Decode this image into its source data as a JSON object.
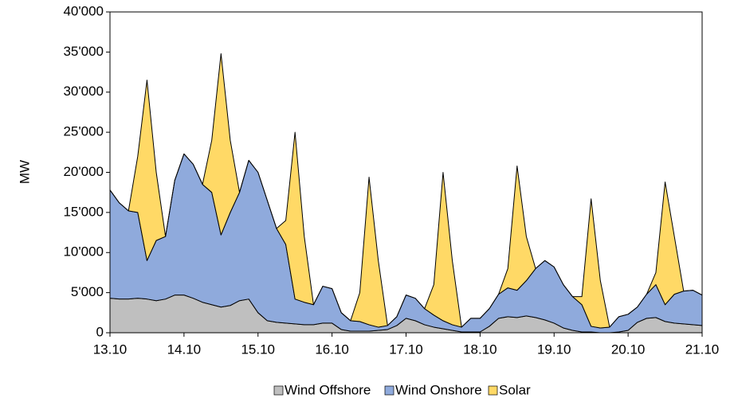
{
  "chart_data": {
    "type": "stacked-area",
    "y_label": "MW",
    "x": [
      0,
      0.125,
      0.25,
      0.375,
      0.5,
      0.625,
      0.75,
      0.875,
      1,
      1.125,
      1.25,
      1.375,
      1.5,
      1.625,
      1.75,
      1.875,
      2,
      2.125,
      2.25,
      2.375,
      2.5,
      2.625,
      2.75,
      2.875,
      3,
      3.125,
      3.25,
      3.375,
      3.5,
      3.625,
      3.75,
      3.875,
      4,
      4.125,
      4.25,
      4.375,
      4.5,
      4.625,
      4.75,
      4.875,
      5,
      5.125,
      5.25,
      5.375,
      5.5,
      5.625,
      5.75,
      5.875,
      6,
      6.125,
      6.25,
      6.375,
      6.5,
      6.625,
      6.75,
      6.875,
      7,
      7.125,
      7.25,
      7.375,
      7.5,
      7.625,
      7.75,
      7.875,
      8
    ],
    "xlim": [
      0,
      8
    ],
    "xticks": [
      {
        "value": 0,
        "label": "13.10"
      },
      {
        "value": 1,
        "label": "14.10"
      },
      {
        "value": 2,
        "label": "15.10"
      },
      {
        "value": 3,
        "label": "16.10"
      },
      {
        "value": 4,
        "label": "17.10"
      },
      {
        "value": 5,
        "label": "18.10"
      },
      {
        "value": 6,
        "label": "19.10"
      },
      {
        "value": 7,
        "label": "20.10"
      },
      {
        "value": 8,
        "label": "21.10"
      }
    ],
    "ylim": [
      0,
      40000
    ],
    "yticks": [
      0,
      {
        "value": 5000,
        "label": "5'000"
      },
      {
        "value": 10000,
        "label": "10'000"
      },
      {
        "value": 15000,
        "label": "15'000"
      },
      {
        "value": 20000,
        "label": "20'000"
      },
      {
        "value": 25000,
        "label": "25'000"
      },
      {
        "value": 30000,
        "label": "30'000"
      },
      {
        "value": 35000,
        "label": "35'000"
      },
      {
        "value": 40000,
        "label": "40'000"
      }
    ],
    "series": [
      {
        "name": "Wind Offshore",
        "color": "#bfbfbf",
        "values": [
          4300,
          4200,
          4200,
          4300,
          4200,
          4000,
          4200,
          4700,
          4700,
          4300,
          3800,
          3500,
          3200,
          3400,
          4000,
          4200,
          2500,
          1500,
          1300,
          1200,
          1100,
          1000,
          1000,
          1200,
          1200,
          400,
          200,
          200,
          200,
          300,
          400,
          900,
          1800,
          1500,
          1000,
          700,
          500,
          300,
          100,
          100,
          100,
          800,
          1800,
          2000,
          1900,
          2100,
          1900,
          1600,
          1200,
          600,
          300,
          100,
          100,
          0,
          0,
          100,
          300,
          1300,
          1800,
          1900,
          1400,
          1200,
          1100,
          1000,
          900
        ]
      },
      {
        "name": "Wind Onshore",
        "color": "#8faadc",
        "values": [
          13500,
          12000,
          11000,
          10700,
          4800,
          7500,
          7800,
          14300,
          17600,
          16700,
          14700,
          14000,
          9000,
          11600,
          13500,
          17300,
          17500,
          15000,
          11700,
          9800,
          3100,
          2800,
          2500,
          4600,
          4300,
          2100,
          1300,
          1200,
          800,
          400,
          500,
          1100,
          2900,
          2800,
          2000,
          1500,
          1000,
          700,
          600,
          1700,
          1700,
          2200,
          3000,
          3600,
          3400,
          4400,
          6100,
          7400,
          7000,
          5400,
          4200,
          3400,
          700,
          600,
          700,
          1900,
          2000,
          1900,
          3000,
          4100,
          2100,
          3600,
          4100,
          4300,
          3800
        ]
      },
      {
        "name": "Solar",
        "color": "#ffd966",
        "values": [
          0,
          0,
          0,
          7000,
          22500,
          8500,
          0,
          0,
          0,
          0,
          0,
          6500,
          22600,
          9000,
          0,
          0,
          0,
          0,
          0,
          3000,
          20800,
          8200,
          0,
          0,
          0,
          0,
          0,
          3600,
          18400,
          8300,
          0,
          0,
          0,
          0,
          0,
          3800,
          18500,
          8000,
          0,
          0,
          0,
          0,
          0,
          2400,
          15500,
          5500,
          0,
          0,
          0,
          0,
          0,
          1000,
          15900,
          5900,
          0,
          0,
          0,
          0,
          0,
          1500,
          15300,
          7200,
          0,
          0,
          0
        ]
      }
    ]
  }
}
